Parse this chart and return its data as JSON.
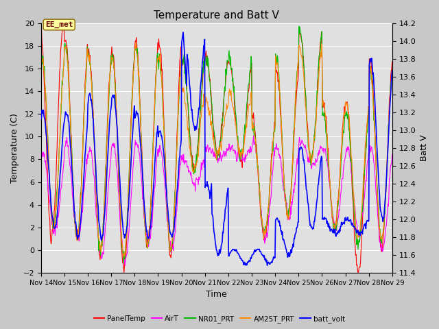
{
  "title": "Temperature and Batt V",
  "xlabel": "Time",
  "ylabel_left": "Temperature (C)",
  "ylabel_right": "Batt V",
  "ylim_left": [
    -2,
    20
  ],
  "ylim_right": [
    11.4,
    14.2
  ],
  "yticks_left": [
    -2,
    0,
    2,
    4,
    6,
    8,
    10,
    12,
    14,
    16,
    18,
    20
  ],
  "yticks_right": [
    11.4,
    11.6,
    11.8,
    12.0,
    12.2,
    12.4,
    12.6,
    12.8,
    13.0,
    13.2,
    13.4,
    13.6,
    13.8,
    14.0,
    14.2
  ],
  "xtick_labels": [
    "Nov 14",
    "Nov 15",
    "Nov 16",
    "Nov 17",
    "Nov 18",
    "Nov 19",
    "Nov 20",
    "Nov 21",
    "Nov 22",
    "Nov 23",
    "Nov 24",
    "Nov 25",
    "Nov 26",
    "Nov 27",
    "Nov 28",
    "Nov 29"
  ],
  "legend_entries": [
    "PanelTemp",
    "AirT",
    "NR01_PRT",
    "AM25T_PRT",
    "batt_volt"
  ],
  "legend_colors": [
    "#ff0000",
    "#ff00ff",
    "#00bb00",
    "#ff8800",
    "#0000ff"
  ],
  "annotation_text": "EE_met",
  "plot_bg": "#e0e0e0",
  "fig_bg": "#c8c8c8",
  "grid_color": "#ffffff",
  "title_fontsize": 11,
  "tick_fontsize": 7,
  "ylabel_fontsize": 9
}
